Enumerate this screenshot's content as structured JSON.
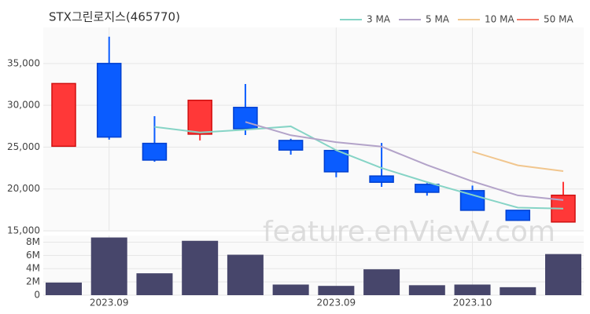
{
  "chart_data": {
    "type": "candlestick",
    "title": "STX그린로지스(465770)",
    "watermark": "feature.enVievV.com",
    "categories": [
      null,
      "2023.09",
      null,
      null,
      null,
      null,
      "2023.09",
      null,
      null,
      "2023.10",
      null,
      null
    ],
    "candles": {
      "up_color": "#ff3838",
      "down_color": "#0a5cff",
      "open": [
        25100,
        35000,
        25450,
        26550,
        29750,
        25800,
        24600,
        21550,
        20550,
        19800,
        17450,
        16050
      ],
      "high": [
        32600,
        38200,
        28700,
        30600,
        32550,
        26000,
        24600,
        25500,
        20700,
        20400,
        17450,
        20850
      ],
      "low": [
        25100,
        25900,
        23250,
        25800,
        26450,
        24100,
        21400,
        20250,
        19200,
        17400,
        16200,
        16050
      ],
      "close": [
        32600,
        26200,
        23450,
        30600,
        27200,
        24650,
        22050,
        20800,
        19600,
        17450,
        16250,
        19250
      ]
    },
    "series": [
      {
        "name": "3 MA",
        "color": "#86d4c6",
        "values": [
          null,
          null,
          27417,
          26750,
          27083,
          27483,
          24633,
          22500,
          20817,
          19283,
          17767,
          17650
        ]
      },
      {
        "name": "5 MA",
        "color": "#b3a3c9",
        "values": [
          null,
          null,
          null,
          null,
          28010,
          26420,
          25590,
          25060,
          22860,
          20910,
          19230,
          18670
        ]
      },
      {
        "name": "10 MA",
        "color": "#f1c68e",
        "values": [
          null,
          null,
          null,
          null,
          null,
          null,
          null,
          null,
          null,
          24460,
          22825,
          22130
        ]
      },
      {
        "name": "50 MA",
        "color": "#f47a6a",
        "values": [
          null,
          null,
          null,
          null,
          null,
          null,
          null,
          null,
          null,
          null,
          null,
          null
        ]
      }
    ],
    "ylim": [
      15000,
      39300
    ],
    "yticks": [
      {
        "value": 15000,
        "label": "15,000"
      },
      {
        "value": 20000,
        "label": "20,000"
      },
      {
        "value": 25000,
        "label": "25,000"
      },
      {
        "value": 30000,
        "label": "30,000"
      },
      {
        "value": 35000,
        "label": "35,000"
      }
    ],
    "volume": {
      "color": "#47466b",
      "values": [
        1900000,
        8700000,
        3300000,
        8200000,
        6100000,
        1600000,
        1400000,
        3900000,
        1500000,
        1600000,
        1200000,
        6200000
      ],
      "ylim": [
        0,
        9000000
      ],
      "yticks": [
        0,
        {
          "value": 2000000,
          "label": "2M"
        },
        {
          "value": 4000000,
          "label": "4M"
        },
        {
          "value": 6000000,
          "label": "6M"
        },
        {
          "value": 8000000,
          "label": "8M"
        }
      ]
    },
    "grid": true
  }
}
